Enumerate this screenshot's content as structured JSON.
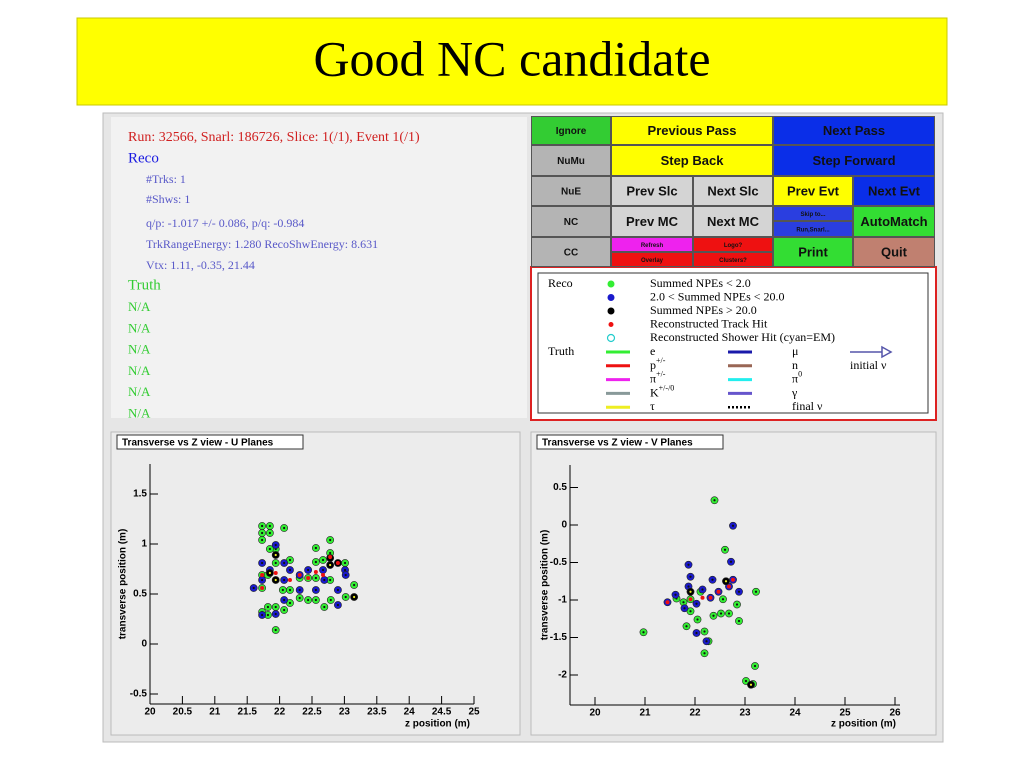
{
  "title": "Good NC candidate",
  "info": {
    "run_line": "Run: 32566, Snarl: 186726, Slice: 1(/1), Event 1(/1)",
    "reco_heading": "Reco",
    "reco_lines": [
      "#Trks: 1",
      "#Shws: 1",
      "q/p: -1.017 +/- 0.086,  p/q: -0.984",
      "TrkRangeEnergy: 1.280   RecoShwEnergy: 8.631",
      "Vtx: 1.11, -0.35, 21.44"
    ],
    "truth_heading": "Truth",
    "truth_lines": [
      "N/A",
      "N/A",
      "N/A",
      "N/A",
      "N/A",
      "N/A"
    ]
  },
  "buttons": [
    {
      "label": "Ignore",
      "color": "#33cc33"
    },
    {
      "label": "Previous Pass",
      "color": "#ffff00"
    },
    {
      "label": "Next Pass",
      "color": "#0a2ee8"
    },
    {
      "label": "NuMu",
      "color": "#b4b4b4"
    },
    {
      "label": "Step Back",
      "color": "#ffff00"
    },
    {
      "label": "Step Forward",
      "color": "#0a2ee8"
    },
    {
      "label": "NuE",
      "color": "#b4b4b4"
    },
    {
      "label": "Prev Slc",
      "color": "#d4d4d4"
    },
    {
      "label": "Next Slc",
      "color": "#d4d4d4"
    },
    {
      "label": "Prev Evt",
      "color": "#ffff00"
    },
    {
      "label": "Next Evt",
      "color": "#0a2ee8"
    },
    {
      "label": "NC",
      "color": "#b4b4b4"
    },
    {
      "label": "Prev MC",
      "color": "#d4d4d4"
    },
    {
      "label": "Next MC",
      "color": "#d4d4d4"
    },
    {
      "label": "Skip to...",
      "color": "#2a3ee0"
    },
    {
      "label": "Run,Snarl...",
      "color": "#2a3ee0"
    },
    {
      "label": "AutoMatch",
      "color": "#33dd33"
    },
    {
      "label": "CC",
      "color": "#b4b4b4"
    },
    {
      "label": "Refresh",
      "color": "#ee22ee"
    },
    {
      "label": "Overlay",
      "color": "#ee1111"
    },
    {
      "label": "Logo?",
      "color": "#ee1111"
    },
    {
      "label": "Clusters?",
      "color": "#ee1111"
    },
    {
      "label": "Print",
      "color": "#33dd33"
    },
    {
      "label": "Quit",
      "color": "#c08070"
    }
  ],
  "legend": {
    "reco_heading": "Reco",
    "reco_entries": [
      {
        "label": "Summed NPEs < 2.0",
        "color": "#33ee33",
        "marker": "dot"
      },
      {
        "label": "2.0 < Summed NPEs < 20.0",
        "color": "#1a1acc",
        "marker": "dot"
      },
      {
        "label": "Summed NPEs > 20.0",
        "color": "#000000",
        "marker": "dot"
      },
      {
        "label": "Reconstructed Track Hit",
        "color": "#ee1111",
        "marker": "small"
      },
      {
        "label": "Reconstructed Shower Hit (cyan=EM)",
        "color": "#22cccc",
        "marker": "ring"
      }
    ],
    "truth_heading": "Truth",
    "truth_entries": [
      {
        "label": "e",
        "color": "#33ee33",
        "style": "solid"
      },
      {
        "label": "p",
        "sup": "+/-",
        "color": "#ee1111",
        "style": "solid"
      },
      {
        "label": "π",
        "sup": "+/-",
        "color": "#ee22ee",
        "style": "solid"
      },
      {
        "label": "K",
        "sup": "+/-/0",
        "color": "#889999",
        "style": "solid"
      },
      {
        "label": "τ",
        "color": "#eeee22",
        "style": "solid"
      },
      {
        "label": "μ",
        "color": "#1a1aaa",
        "style": "solid"
      },
      {
        "label": "n",
        "color": "#996655",
        "style": "solid"
      },
      {
        "label": "π",
        "sup": "0",
        "color": "#22eeee",
        "style": "solid"
      },
      {
        "label": "γ",
        "color": "#6655cc",
        "style": "solid"
      },
      {
        "label": "final ν",
        "color": "#000000",
        "style": "dotted"
      },
      {
        "label": "initial ν",
        "color": "#5555aa",
        "style": "arrow"
      }
    ]
  },
  "plots": [
    {
      "type": "scatter",
      "title": "Transverse vs Z view - U Planes",
      "xlabel": "z position (m)",
      "ylabel": "transverse position (m)",
      "xlim": [
        20,
        25
      ],
      "ylim": [
        -0.6,
        1.8
      ],
      "xticks": [
        20,
        20.5,
        21,
        21.5,
        22,
        22.5,
        23,
        23.5,
        24,
        24.5,
        25
      ],
      "yticks": [
        -0.5,
        0,
        0.5,
        1,
        1.5
      ],
      "series": [
        {
          "color": "#33ee33",
          "x": [
            21.73,
            21.85,
            21.73,
            21.85,
            22.07,
            21.73,
            21.94,
            21.85,
            22.16,
            22.56,
            22.78,
            22.56,
            22.67,
            22.78,
            23.01,
            21.94,
            21.73,
            21.82,
            22.31,
            22.44,
            22.56,
            22.78,
            21.73,
            22.05,
            22.16,
            22.31,
            22.44,
            22.56,
            22.79,
            22.69,
            21.82,
            21.94,
            21.73,
            22.07,
            22.16,
            21.94,
            21.82,
            23.15,
            23.02
          ],
          "values": [
            1.18,
            1.18,
            1.11,
            1.11,
            1.16,
            1.04,
            0.95,
            0.95,
            0.84,
            0.96,
            1.04,
            0.82,
            0.84,
            0.91,
            0.81,
            0.81,
            0.69,
            0.69,
            0.66,
            0.66,
            0.66,
            0.64,
            0.56,
            0.54,
            0.54,
            0.46,
            0.44,
            0.44,
            0.44,
            0.37,
            0.37,
            0.37,
            0.32,
            0.34,
            0.41,
            0.14,
            0.29,
            0.59,
            0.47
          ]
        },
        {
          "color": "#1a1acc",
          "x": [
            21.94,
            21.73,
            22.07,
            21.85,
            22.16,
            22.31,
            22.44,
            22.67,
            23.01,
            21.73,
            22.07,
            22.69,
            21.6,
            22.31,
            22.56,
            22.9,
            23.02,
            21.73,
            21.94,
            22.07,
            22.9
          ],
          "values": [
            0.99,
            0.81,
            0.81,
            0.74,
            0.74,
            0.69,
            0.74,
            0.74,
            0.74,
            0.64,
            0.64,
            0.64,
            0.56,
            0.54,
            0.54,
            0.54,
            0.69,
            0.29,
            0.3,
            0.44,
            0.39
          ]
        },
        {
          "color": "#000000",
          "x": [
            21.94,
            21.85,
            21.94,
            22.78,
            22.78,
            23.15,
            22.9
          ],
          "values": [
            0.89,
            0.71,
            0.64,
            0.86,
            0.79,
            0.47,
            0.81
          ]
        },
        {
          "color": "#ee1111",
          "x": [
            21.73,
            21.94,
            22.31,
            22.44,
            22.67,
            22.56,
            22.9,
            22.78,
            21.73,
            22.16
          ],
          "values": [
            0.69,
            0.71,
            0.69,
            0.66,
            0.69,
            0.72,
            0.81,
            0.87,
            0.56,
            0.64
          ]
        }
      ]
    },
    {
      "type": "scatter",
      "title": "Transverse vs Z view - V Planes",
      "xlabel": "z position (m)",
      "ylabel": "transverse position (m)",
      "xlim": [
        19.5,
        26.1
      ],
      "ylim": [
        -2.4,
        0.8
      ],
      "xticks": [
        20,
        21,
        22,
        23,
        24,
        25,
        26
      ],
      "yticks": [
        -2,
        -1.5,
        -1,
        -0.5,
        0,
        0.5
      ],
      "series": [
        {
          "color": "#33ee33",
          "x": [
            22.39,
            20.97,
            21.63,
            21.77,
            21.91,
            21.83,
            22.05,
            22.19,
            22.27,
            22.37,
            22.52,
            22.56,
            22.68,
            22.84,
            22.88,
            23.22,
            23.2,
            23.02,
            23.16,
            22.19,
            21.91,
            22.6,
            22.11
          ],
          "values": [
            0.33,
            -1.43,
            -0.98,
            -1.03,
            -1.15,
            -1.35,
            -1.26,
            -1.42,
            -1.55,
            -1.21,
            -1.18,
            -0.99,
            -1.18,
            -1.06,
            -1.28,
            -0.89,
            -1.88,
            -2.08,
            -2.12,
            -1.71,
            -0.99,
            -0.33,
            -0.89
          ]
        },
        {
          "color": "#1a1acc",
          "x": [
            22.76,
            21.87,
            21.91,
            21.87,
            22.15,
            22.35,
            22.72,
            21.45,
            21.79,
            22.03,
            22.23,
            22.47,
            22.68,
            22.76,
            22.88,
            21.61,
            22.31,
            22.03
          ],
          "values": [
            -0.01,
            -0.53,
            -0.69,
            -0.82,
            -0.86,
            -0.73,
            -0.49,
            -1.03,
            -1.11,
            -1.44,
            -1.55,
            -0.89,
            -0.82,
            -0.73,
            -0.89,
            -0.93,
            -0.97,
            -1.05
          ]
        },
        {
          "color": "#000000",
          "x": [
            23.12,
            21.91,
            22.62
          ],
          "values": [
            -2.13,
            -0.89,
            -0.75
          ]
        },
        {
          "color": "#ee1111",
          "x": [
            21.45,
            21.91,
            22.15,
            22.47,
            22.68,
            22.31,
            22.76
          ],
          "values": [
            -1.03,
            -0.99,
            -0.97,
            -0.89,
            -0.82,
            -0.97,
            -0.73
          ]
        }
      ]
    }
  ]
}
